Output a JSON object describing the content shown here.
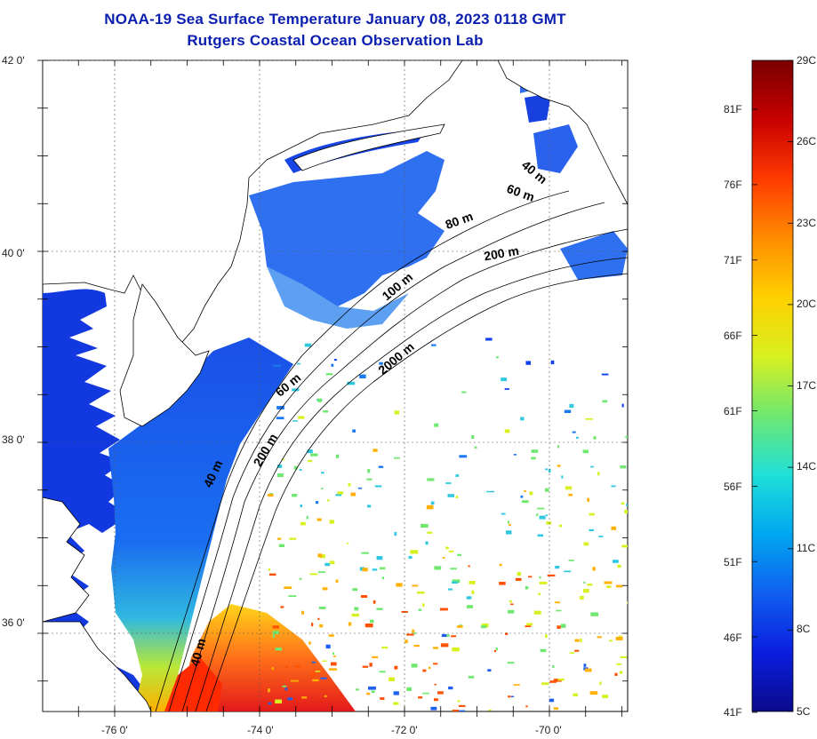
{
  "title": "NOAA-19 Sea Surface Temperature January 08, 2023 0118 GMT",
  "subtitle": "Rutgers Coastal Ocean Observation Lab",
  "map": {
    "lat_ticks": [
      {
        "lat": 42,
        "label": "42 0'"
      },
      {
        "lat": 40,
        "label": "40 0'"
      },
      {
        "lat": 38,
        "label": "38 0'"
      },
      {
        "lat": 36,
        "label": "36 0'"
      }
    ],
    "lon_ticks": [
      {
        "lon": -76,
        "label": "-76 0'"
      },
      {
        "lon": -74,
        "label": "-74 0'"
      },
      {
        "lon": -72,
        "label": "-72 0'"
      },
      {
        "lon": -70,
        "label": "-70 0'"
      }
    ],
    "isobath_labels": [
      "40 m",
      "60 m",
      "80 m",
      "200 m",
      "100 m",
      "2000 m",
      "60 m",
      "40 m",
      "200 m",
      "40 m"
    ]
  },
  "colorbar": {
    "celsius": [
      "29C",
      "26C",
      "23C",
      "20C",
      "17C",
      "14C",
      "11C",
      "8C",
      "5C"
    ],
    "fahrenheit": [
      "81F",
      "76F",
      "71F",
      "66F",
      "61F",
      "56F",
      "51F",
      "46F",
      "41F"
    ],
    "colors": [
      "#7a0000",
      "#c80000",
      "#ff3a00",
      "#ff8c00",
      "#ffd000",
      "#d8f020",
      "#6ee870",
      "#20e0d8",
      "#00a8f0",
      "#1060f0",
      "#0a1ee0",
      "#0a0a8a"
    ]
  }
}
